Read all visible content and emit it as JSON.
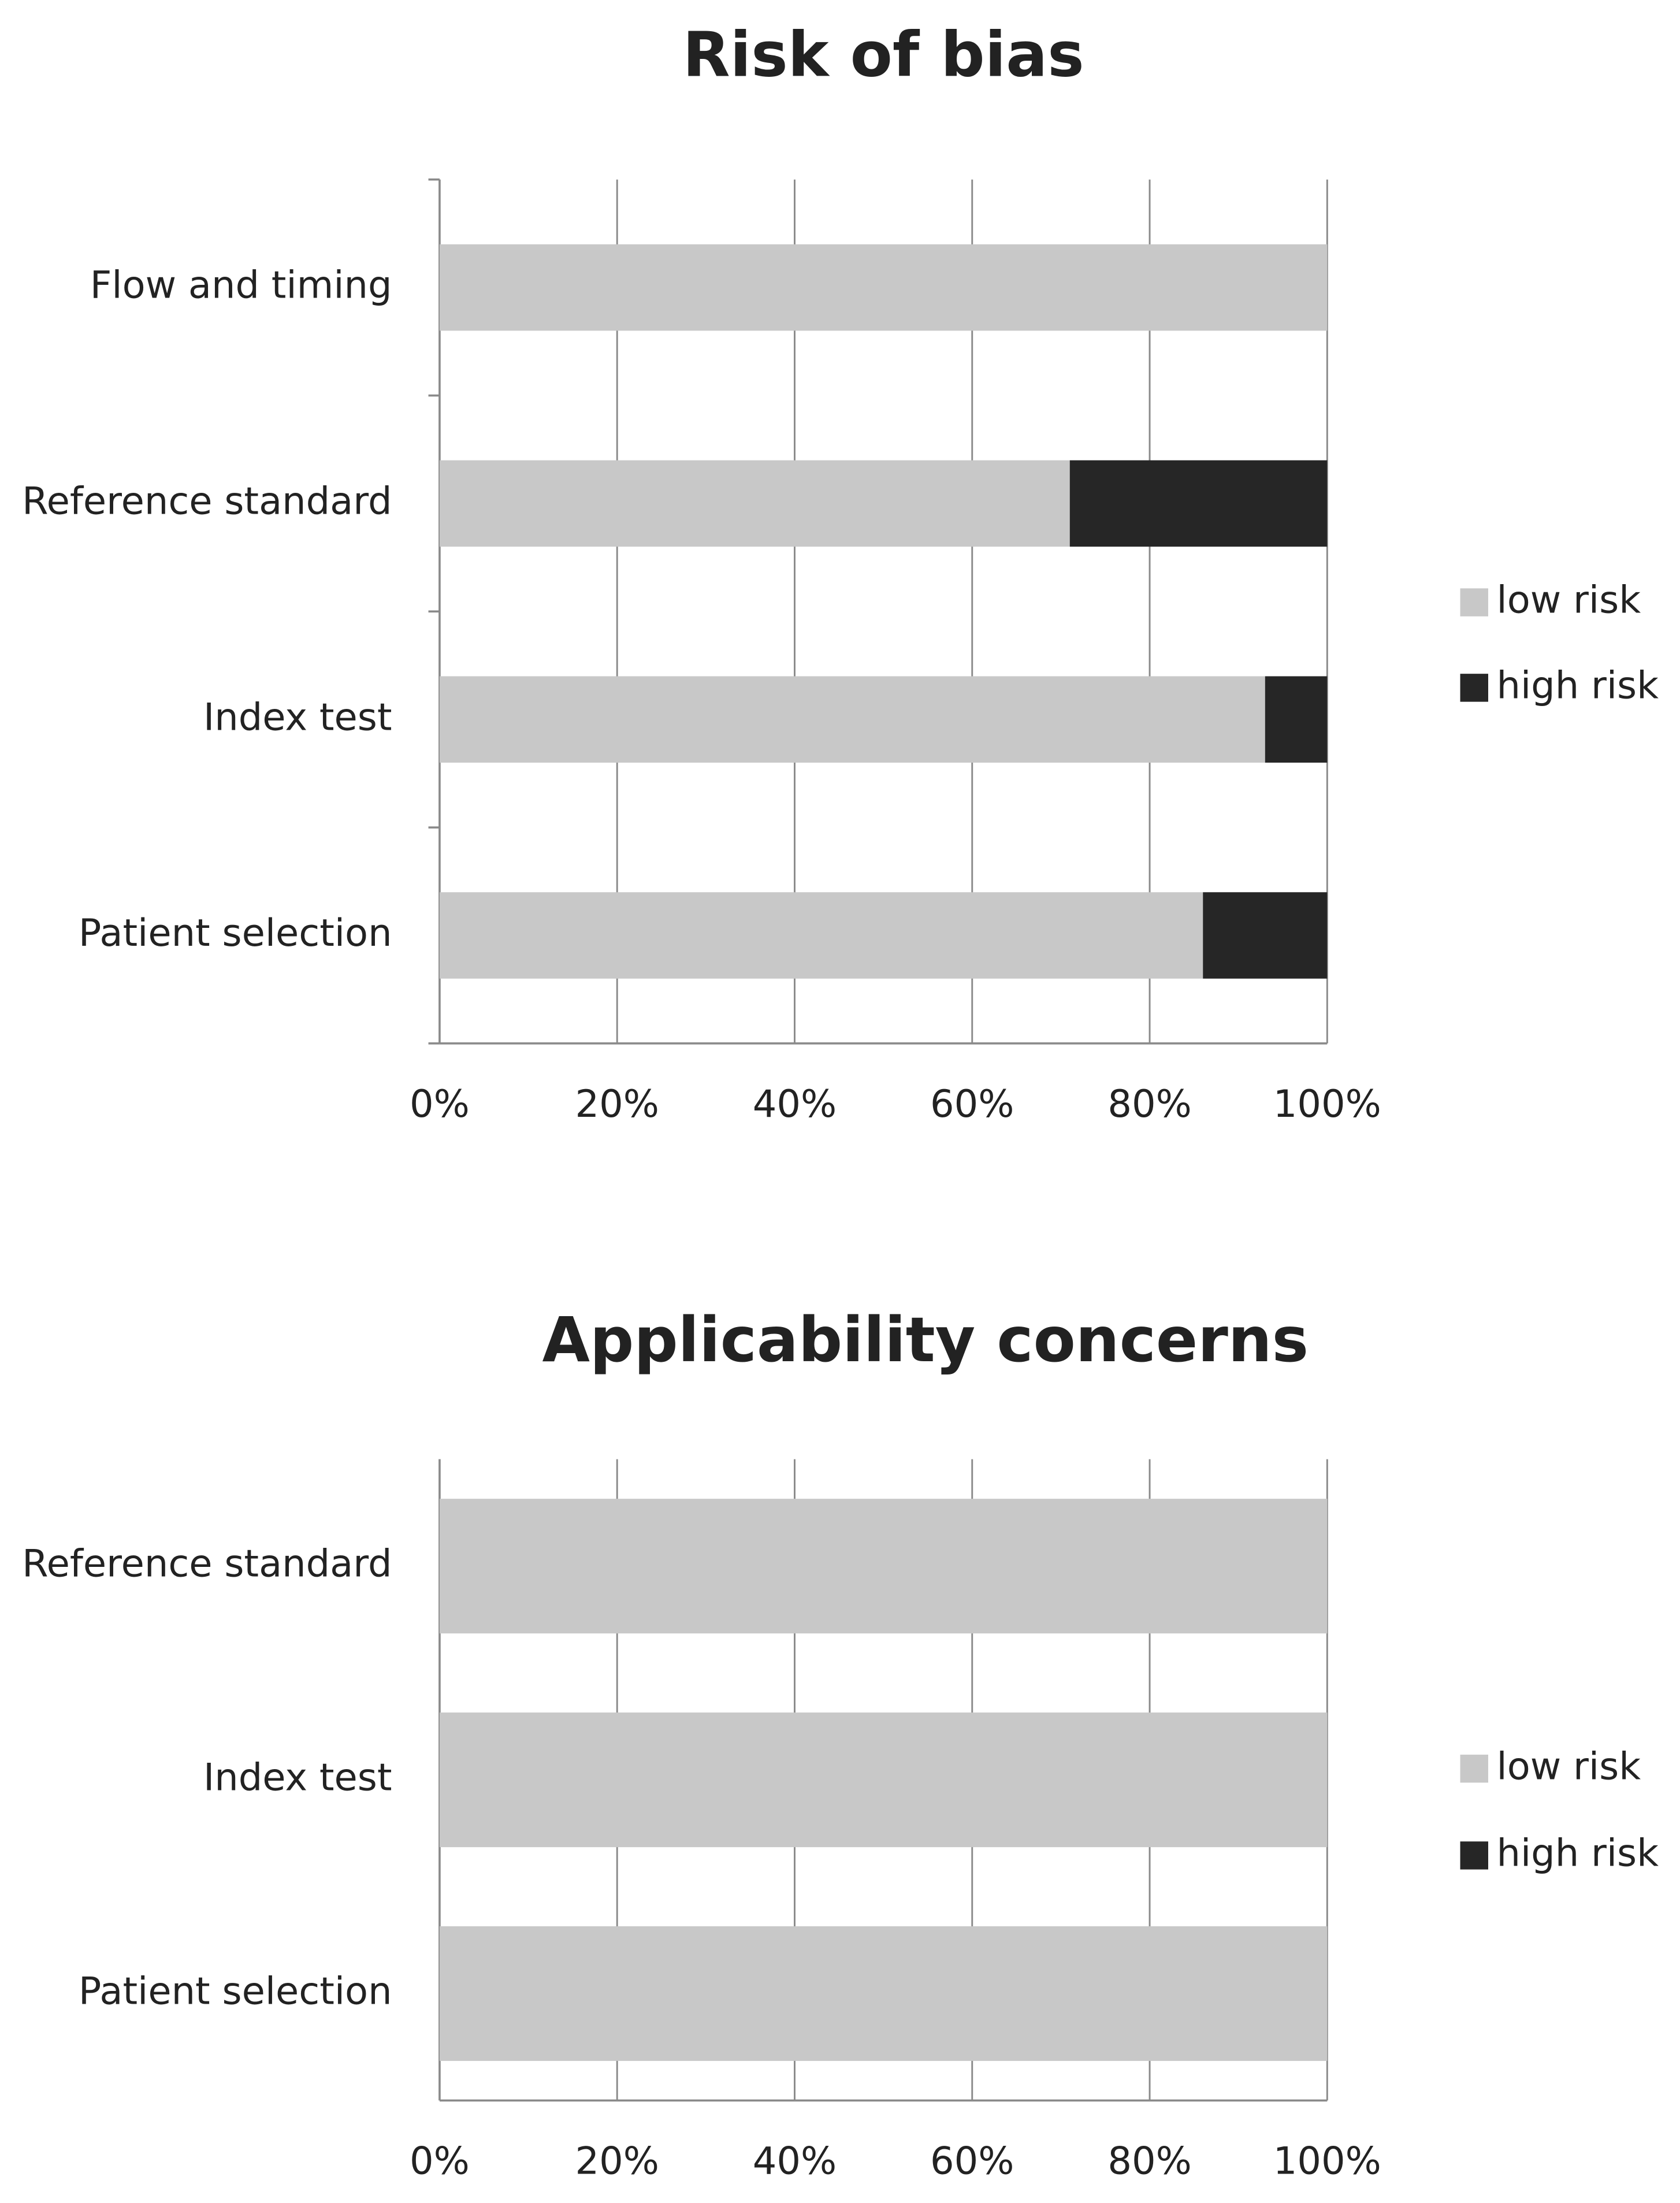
{
  "chart_data": [
    {
      "type": "stacked-bar",
      "orientation": "horizontal",
      "title": "Risk of bias",
      "categories": [
        "Patient selection",
        "Index test",
        "Reference standard",
        "Flow and timing"
      ],
      "series": [
        {
          "name": "low risk",
          "color": "#c8c8c8",
          "values": [
            86,
            93,
            71,
            100
          ]
        },
        {
          "name": "high risk",
          "color": "#262626",
          "values": [
            14,
            7,
            29,
            0
          ]
        }
      ],
      "xlim": [
        0,
        100
      ],
      "xticks": [
        {
          "value": 0,
          "label": "0%"
        },
        {
          "value": 20,
          "label": "20%"
        },
        {
          "value": 40,
          "label": "40%"
        },
        {
          "value": 60,
          "label": "60%"
        },
        {
          "value": 80,
          "label": "80%"
        },
        {
          "value": 100,
          "label": "100%"
        }
      ],
      "grid": true,
      "legend": "right"
    },
    {
      "type": "stacked-bar",
      "orientation": "horizontal",
      "title": "Applicability concerns",
      "categories": [
        "Patient selection",
        "Index test",
        "Reference standard"
      ],
      "series": [
        {
          "name": "low risk",
          "color": "#c8c8c8",
          "values": [
            100,
            100,
            100
          ]
        },
        {
          "name": "high risk",
          "color": "#262626",
          "values": [
            0,
            0,
            0
          ]
        }
      ],
      "xlim": [
        0,
        100
      ],
      "xticks": [
        {
          "value": 0,
          "label": "0%"
        },
        {
          "value": 20,
          "label": "20%"
        },
        {
          "value": 40,
          "label": "40%"
        },
        {
          "value": 60,
          "label": "60%"
        },
        {
          "value": 80,
          "label": "80%"
        },
        {
          "value": 100,
          "label": "100%"
        }
      ],
      "grid": true,
      "legend": "right"
    }
  ]
}
